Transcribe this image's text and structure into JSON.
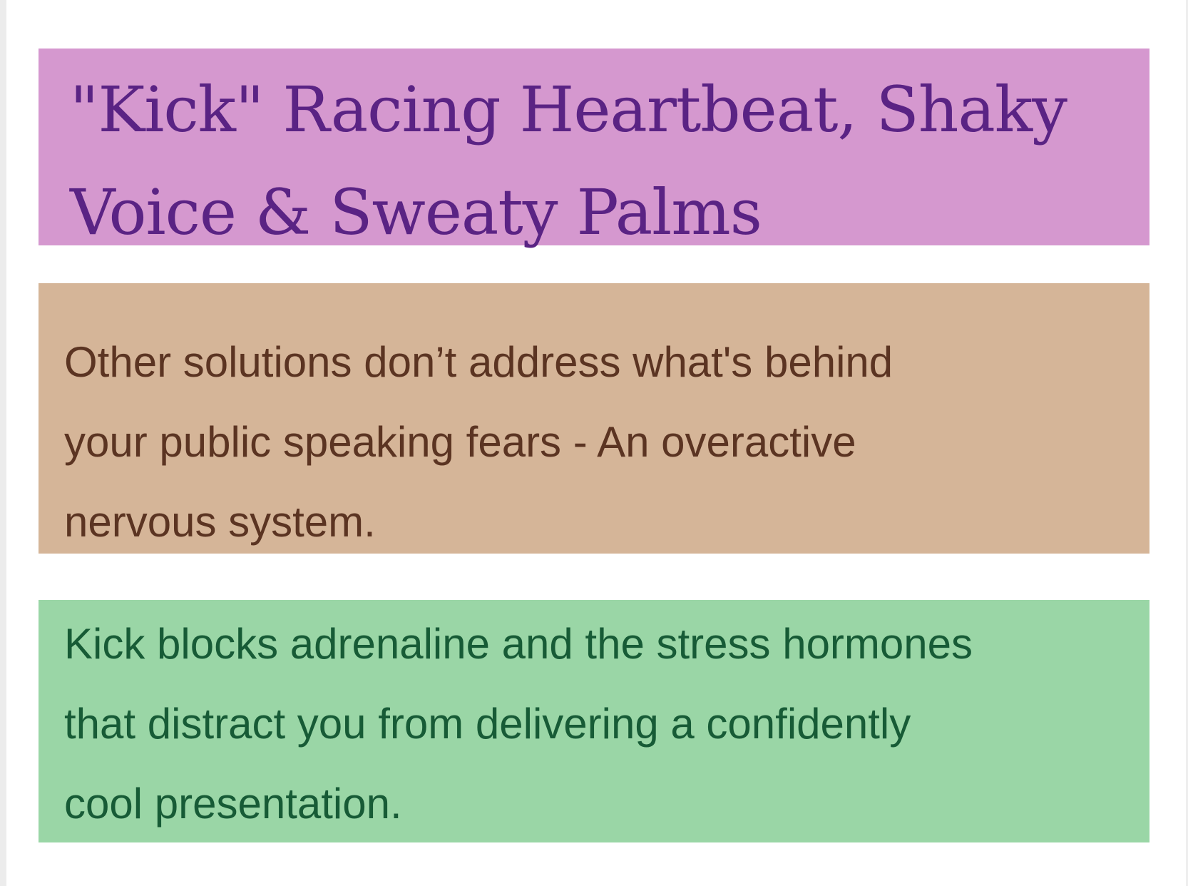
{
  "heading": {
    "lines": [
      "\"Kick\" Racing Heartbeat, Shaky",
      "Voice & Sweaty Palms"
    ]
  },
  "problem": {
    "lines": [
      "Other solutions don’t address what's behind",
      "your public speaking fears - An overactive",
      "nervous system."
    ]
  },
  "solution": {
    "lines": [
      "Kick blocks adrenaline and the stress hormones",
      "that distract you from delivering a confidently",
      "cool presentation."
    ]
  },
  "colors": {
    "heading_bg": "#d598cf",
    "heading_text": "#5a2384",
    "problem_bg": "#d5b598",
    "problem_text": "#5b3422",
    "solution_bg": "#9ad6a6",
    "solution_text": "#175b36"
  }
}
